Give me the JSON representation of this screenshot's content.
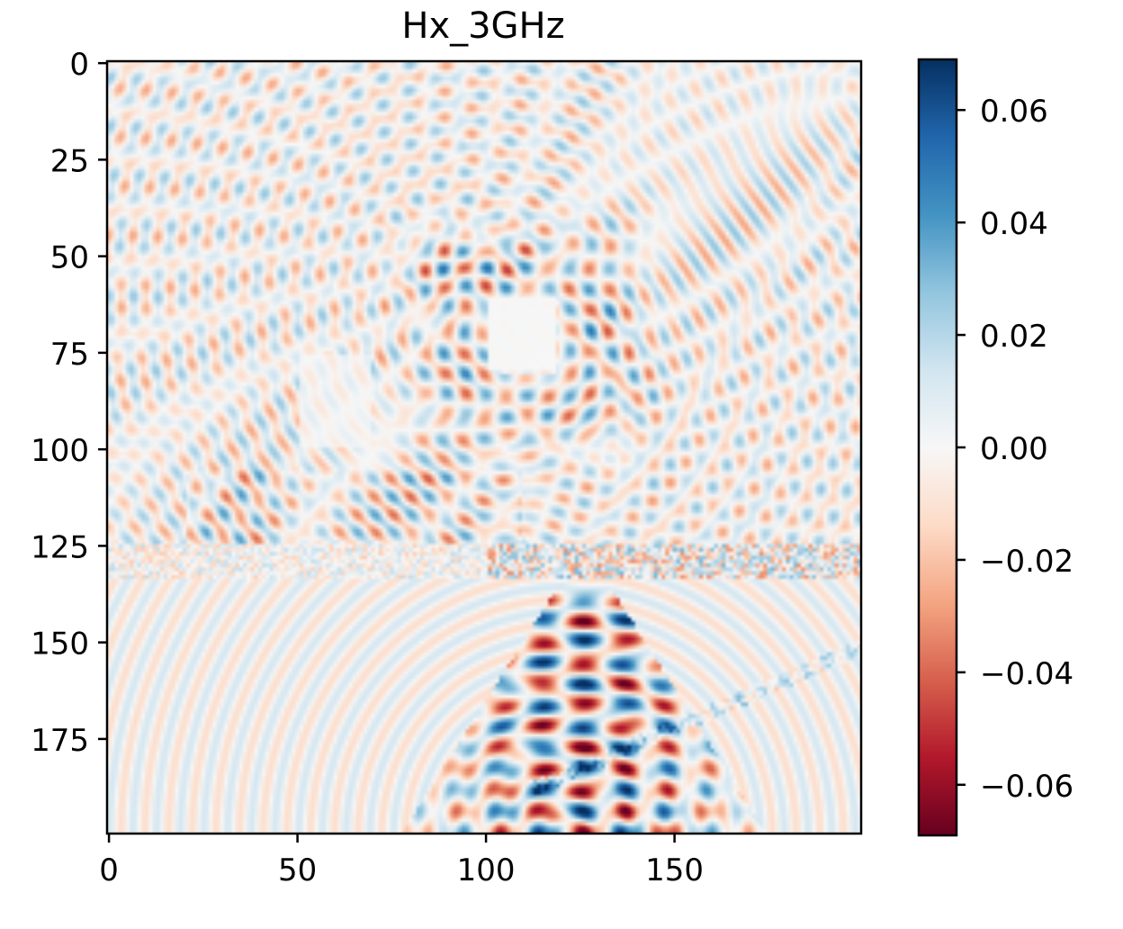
{
  "chart_data": {
    "type": "heatmap",
    "title": "Hx_3GHz",
    "xlabel": "",
    "ylabel": "",
    "x_range": [
      0,
      199
    ],
    "y_range": [
      0,
      199
    ],
    "x_ticks": [
      0,
      50,
      100,
      150
    ],
    "y_ticks": [
      0,
      25,
      50,
      75,
      100,
      125,
      150,
      175
    ],
    "colormap": "RdBu",
    "colorbar": {
      "vmin": -0.069,
      "vmax": 0.069,
      "ticks": [
        0.06,
        0.04,
        0.02,
        0.0,
        -0.02,
        -0.04,
        -0.06
      ],
      "tick_labels": [
        "0.06",
        "0.04",
        "0.02",
        "0.00",
        "−0.02",
        "−0.04",
        "−0.06"
      ]
    },
    "grid": false
  },
  "colors": {
    "negative_max": "#67001f",
    "negative_mid": "#d6604d",
    "zero": "#f7f7f7",
    "positive_mid": "#4393c3",
    "positive_max": "#053061"
  }
}
